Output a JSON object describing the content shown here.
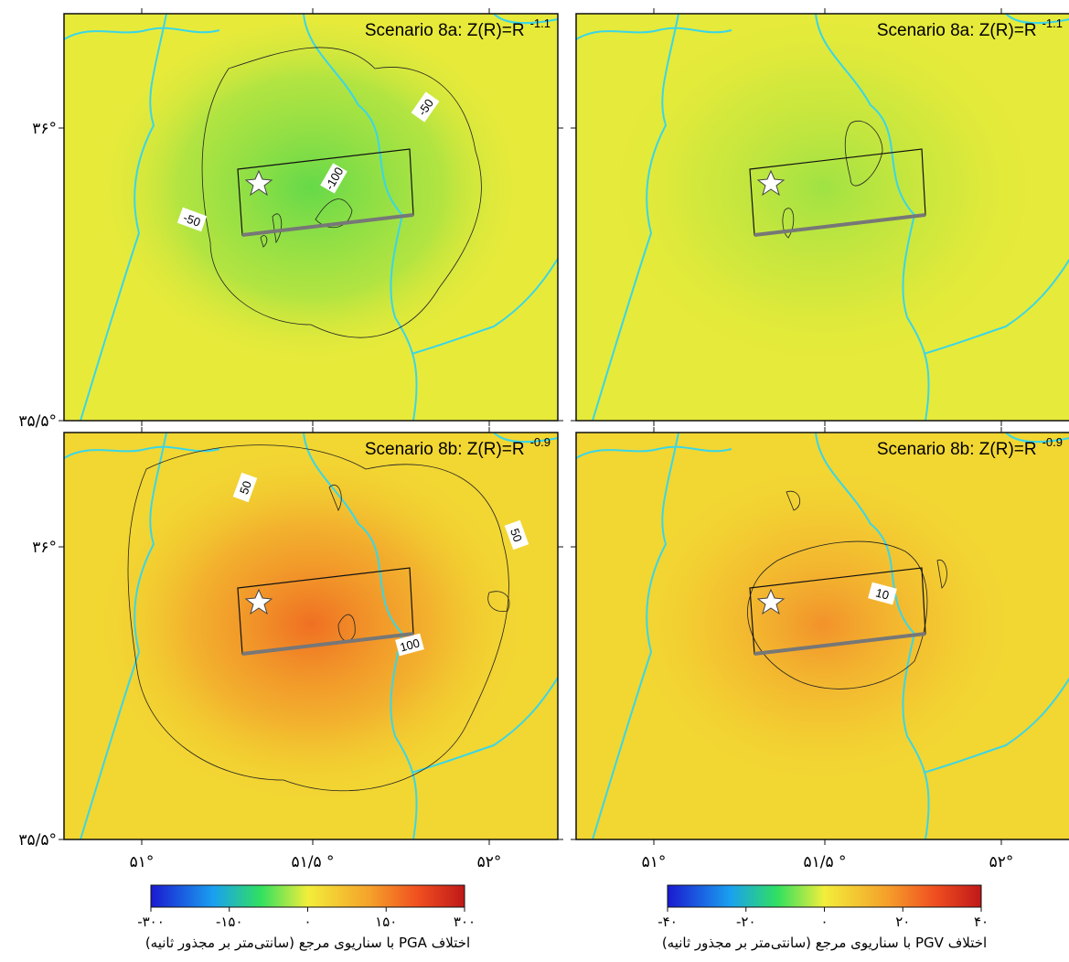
{
  "panels": [
    {
      "title": "Scenario 8a: Z(R)=R",
      "exponent": "-1.1",
      "contour_labels": [
        "-50",
        "-100",
        "-50"
      ]
    },
    {
      "title": "Scenario 8a: Z(R)=R",
      "exponent": "-1.1",
      "contour_labels": []
    },
    {
      "title": "Scenario 8b: Z(R)=R",
      "exponent": "-0.9",
      "contour_labels": [
        "50",
        "50",
        "100"
      ]
    },
    {
      "title": "Scenario 8b: Z(R)=R",
      "exponent": "-0.9",
      "contour_labels": [
        "10"
      ]
    }
  ],
  "axes": {
    "latitudes": [
      "۳۶°",
      "۳۵/۵°"
    ],
    "longitudes": [
      "۵۱°",
      "۵۱/۵ °",
      "۵۲°"
    ]
  },
  "colorbars": [
    {
      "range": [
        -300,
        300
      ],
      "ticks": [
        {
          "value": -300,
          "label": "-۳۰۰"
        },
        {
          "value": -150,
          "label": "-۱۵۰"
        },
        {
          "value": 0,
          "label": "۰"
        },
        {
          "value": 150,
          "label": "۱۵۰"
        },
        {
          "value": 300,
          "label": "۳۰۰"
        }
      ],
      "caption": "اختلاف PGA با سناریوی مرجع (سانتی‌متر بر مجذور ثانیه)"
    },
    {
      "range": [
        -40,
        40
      ],
      "ticks": [
        {
          "value": -40,
          "label": "-۴۰"
        },
        {
          "value": -20,
          "label": "-۲۰"
        },
        {
          "value": 0,
          "label": "۰"
        },
        {
          "value": 20,
          "label": "۲۰"
        },
        {
          "value": 40,
          "label": "۴۰"
        }
      ],
      "caption": "اختلاف PGV با سناریوی مرجع (سانتی‌متر بر مجذور ثانیه)"
    }
  ]
}
